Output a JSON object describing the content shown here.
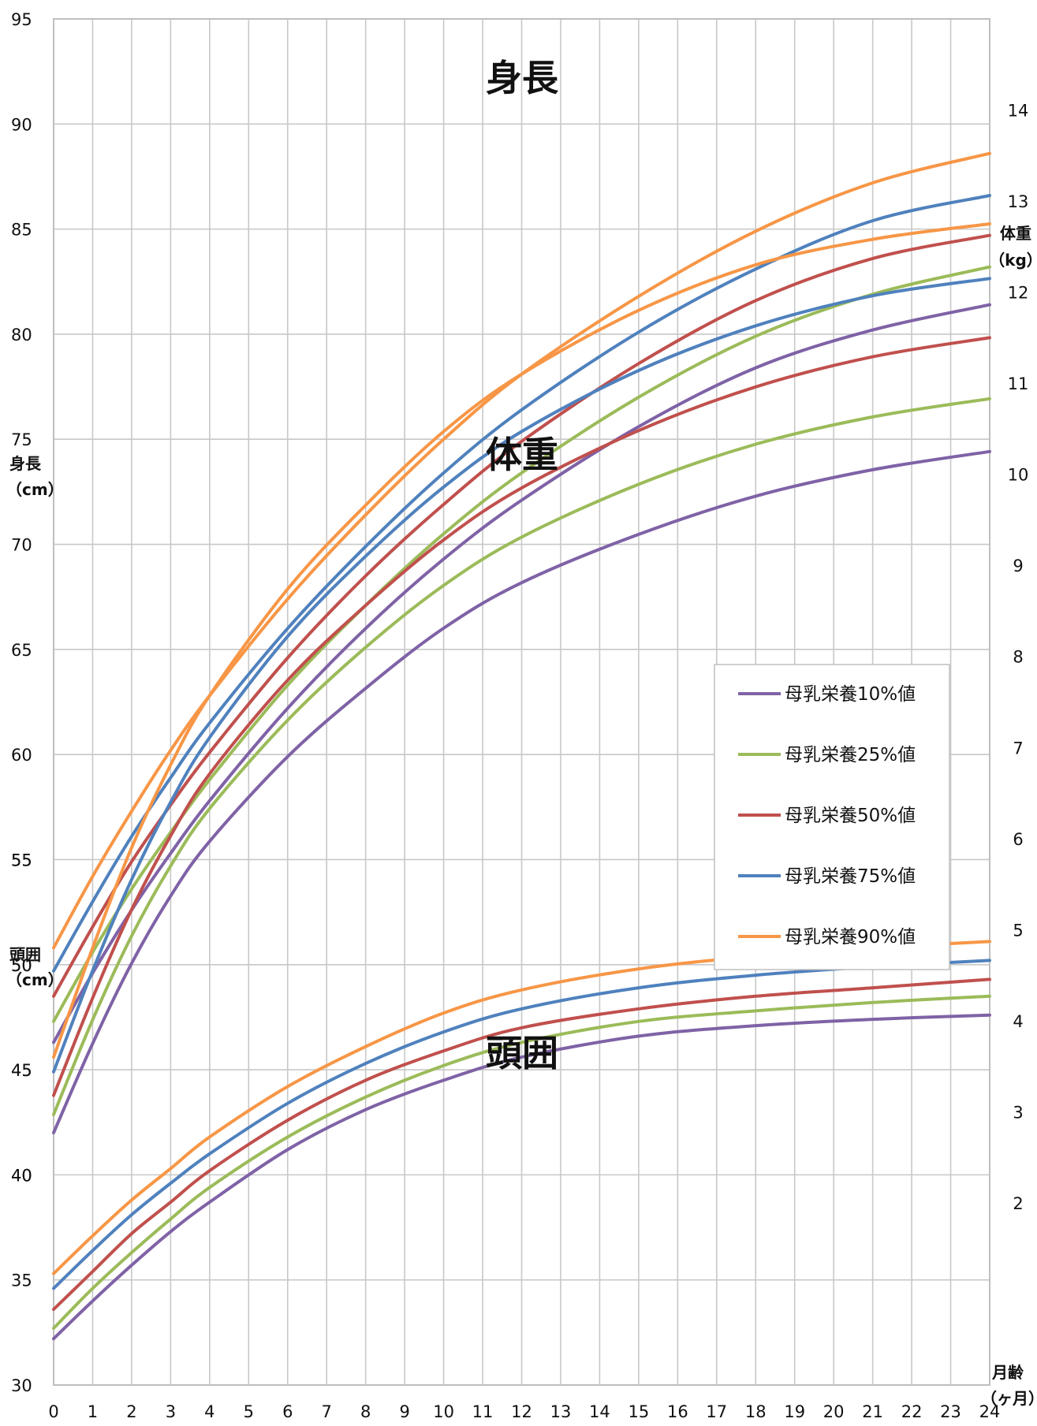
{
  "chart_data": {
    "type": "line",
    "titles": [
      "身長",
      "体重",
      "頭囲"
    ],
    "x_axis": {
      "label_lines": [
        "月齢",
        "（ヶ月）"
      ],
      "range": [
        0,
        24
      ],
      "ticks": [
        "0",
        "1",
        "2",
        "3",
        "4",
        "5",
        "6",
        "7",
        "8",
        "9",
        "10",
        "11",
        "12",
        "13",
        "14",
        "15",
        "16",
        "17",
        "18",
        "19",
        "20",
        "21",
        "22",
        "23",
        "24"
      ]
    },
    "left_scale": {
      "range": [
        30,
        95
      ],
      "height_label_lines": [
        "身長",
        "（cm）"
      ],
      "height_ticks": [
        "95",
        "90",
        "85",
        "80",
        "75",
        "70",
        "65",
        "60",
        "55",
        "50",
        "45",
        "40"
      ],
      "head_label_lines": [
        "頭囲",
        "（cm）"
      ],
      "head_ticks": [
        "55",
        "50",
        "45",
        "40",
        "35",
        "30"
      ]
    },
    "right_scale": {
      "label_lines": [
        "体重",
        "（kg）"
      ],
      "range": [
        0,
        15
      ],
      "ticks": [
        "14",
        "13",
        "12",
        "11",
        "10",
        "9",
        "8",
        "7",
        "6",
        "5",
        "4",
        "3",
        "2"
      ]
    },
    "grid": true,
    "legend": {
      "position": "right",
      "entries": [
        "母乳栄養10%値",
        "母乳栄養25%値",
        "母乳栄養50%値",
        "母乳栄養75%値",
        "母乳栄養90%値"
      ]
    },
    "colors": [
      "#7f62a6",
      "#9bbb59",
      "#c0504d",
      "#4f81bd",
      "#f79646"
    ],
    "x": [
      0,
      1,
      2,
      3,
      4,
      6,
      8,
      10,
      12,
      15,
      18,
      21,
      24
    ],
    "groups": [
      {
        "metric": "身長",
        "unit": "cm",
        "series": [
          {
            "values": [
              46.3,
              49.6,
              52.6,
              55.3,
              57.8,
              62.2,
              66.0,
              69.3,
              72.1,
              75.6,
              78.4,
              80.2,
              81.4
            ]
          },
          {
            "values": [
              47.3,
              50.6,
              53.6,
              56.3,
              58.8,
              63.3,
              67.1,
              70.5,
              73.4,
              77.0,
              79.9,
              81.9,
              83.2
            ]
          },
          {
            "values": [
              48.5,
              51.8,
              54.9,
              57.6,
              60.1,
              64.6,
              68.5,
              71.9,
              74.9,
              78.6,
              81.6,
              83.6,
              84.7
            ]
          },
          {
            "values": [
              49.7,
              53.0,
              56.1,
              58.9,
              61.5,
              66.0,
              69.9,
              73.4,
              76.4,
              80.1,
              83.1,
              85.4,
              86.6
            ]
          },
          {
            "values": [
              50.8,
              54.2,
              57.3,
              60.2,
              62.8,
              67.4,
              71.4,
              75.0,
              78.1,
              81.8,
              84.9,
              87.2,
              88.6
            ]
          }
        ]
      },
      {
        "metric": "体重",
        "unit": "kg",
        "series": [
          {
            "values": [
              2.77,
              3.75,
              4.63,
              5.37,
              5.97,
              6.9,
              7.65,
              8.31,
              8.81,
              9.34,
              9.76,
              10.05,
              10.25
            ]
          },
          {
            "values": [
              2.97,
              4.01,
              4.93,
              5.7,
              6.33,
              7.3,
              8.1,
              8.78,
              9.31,
              9.89,
              10.33,
              10.63,
              10.83
            ]
          },
          {
            "values": [
              3.18,
              4.25,
              5.22,
              6.03,
              6.71,
              7.74,
              8.56,
              9.28,
              9.85,
              10.48,
              10.96,
              11.29,
              11.5
            ]
          },
          {
            "values": [
              3.44,
              4.55,
              5.55,
              6.4,
              7.11,
              8.22,
              9.1,
              9.86,
              10.47,
              11.14,
              11.63,
              11.96,
              12.15
            ]
          },
          {
            "values": [
              3.6,
              4.8,
              5.9,
              6.81,
              7.57,
              8.74,
              9.66,
              10.47,
              11.1,
              11.8,
              12.3,
              12.58,
              12.75
            ]
          }
        ]
      },
      {
        "metric": "頭囲",
        "unit": "cm",
        "series": [
          {
            "values": [
              32.2,
              34.0,
              35.7,
              37.3,
              38.7,
              41.2,
              43.1,
              44.5,
              45.6,
              46.6,
              47.1,
              47.4,
              47.6
            ]
          },
          {
            "values": [
              32.7,
              34.6,
              36.3,
              37.9,
              39.4,
              41.8,
              43.7,
              45.2,
              46.3,
              47.3,
              47.8,
              48.2,
              48.5
            ]
          },
          {
            "values": [
              33.6,
              35.4,
              37.2,
              38.7,
              40.2,
              42.6,
              44.5,
              45.9,
              47.0,
              47.9,
              48.5,
              48.9,
              49.3
            ]
          },
          {
            "values": [
              34.6,
              36.4,
              38.1,
              39.6,
              41.0,
              43.4,
              45.3,
              46.8,
              47.9,
              48.9,
              49.5,
              49.9,
              50.2
            ]
          },
          {
            "values": [
              35.3,
              37.1,
              38.8,
              40.3,
              41.8,
              44.2,
              46.1,
              47.7,
              48.8,
              49.8,
              50.4,
              50.8,
              51.1
            ]
          }
        ]
      }
    ]
  }
}
